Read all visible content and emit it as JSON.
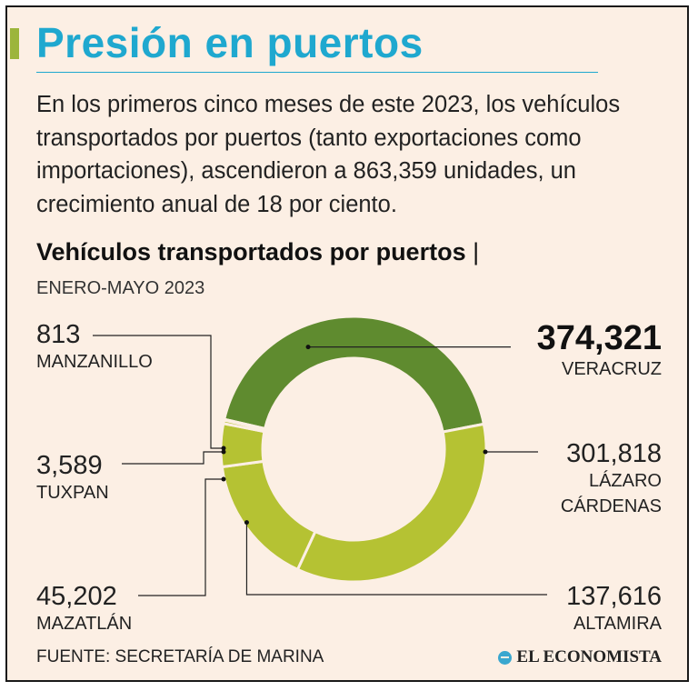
{
  "header": {
    "title": "Presión en puertos",
    "intro": "En los primeros cinco meses de este 2023, los vehículos transportados por puertos (tanto exportaciones como importaciones), ascendieron a 863,359 unidades, un crecimiento anual de 18 por ciento."
  },
  "colors": {
    "title": "#1fa8cf",
    "accent": "#9cb53b",
    "veracruz": "#5f8b2f",
    "others": "#b5c233",
    "background": "#fcefe4"
  },
  "chart_data": {
    "type": "pie",
    "variant": "donut",
    "title": "Vehículos transportados por puertos",
    "title_separator": "|",
    "subtitle": "ENERO-MAYO 2023",
    "total": 863359,
    "unit": "unidades",
    "slices": [
      {
        "id": "veracruz",
        "name": "VERACRUZ",
        "name_lines": [
          "VERACRUZ"
        ],
        "value": 374321,
        "label": "374,321",
        "color": "#5f8b2f",
        "highlight": true
      },
      {
        "id": "lazaro",
        "name": "LÁZARO CÁRDENAS",
        "name_lines": [
          "LÁZARO",
          "CÁRDENAS"
        ],
        "value": 301818,
        "label": "301,818",
        "color": "#b5c233"
      },
      {
        "id": "altamira",
        "name": "ALTAMIRA",
        "name_lines": [
          "ALTAMIRA"
        ],
        "value": 137616,
        "label": "137,616",
        "color": "#b5c233"
      },
      {
        "id": "mazatlan",
        "name": "MAZATLÁN",
        "name_lines": [
          "MAZATLÁN"
        ],
        "value": 45202,
        "label": "45,202",
        "color": "#b5c233"
      },
      {
        "id": "tuxpan",
        "name": "TUXPAN",
        "name_lines": [
          "TUXPAN"
        ],
        "value": 3589,
        "label": "3,589",
        "color": "#b5c233"
      },
      {
        "id": "manzanillo",
        "name": "MANZANILLO",
        "name_lines": [
          "MANZANILLO"
        ],
        "value": 813,
        "label": "813",
        "color": "#b5c233"
      }
    ]
  },
  "footer": {
    "source": "FUENTE: SECRETARÍA DE MARINA",
    "brand": "EL ECONOMISTA"
  }
}
